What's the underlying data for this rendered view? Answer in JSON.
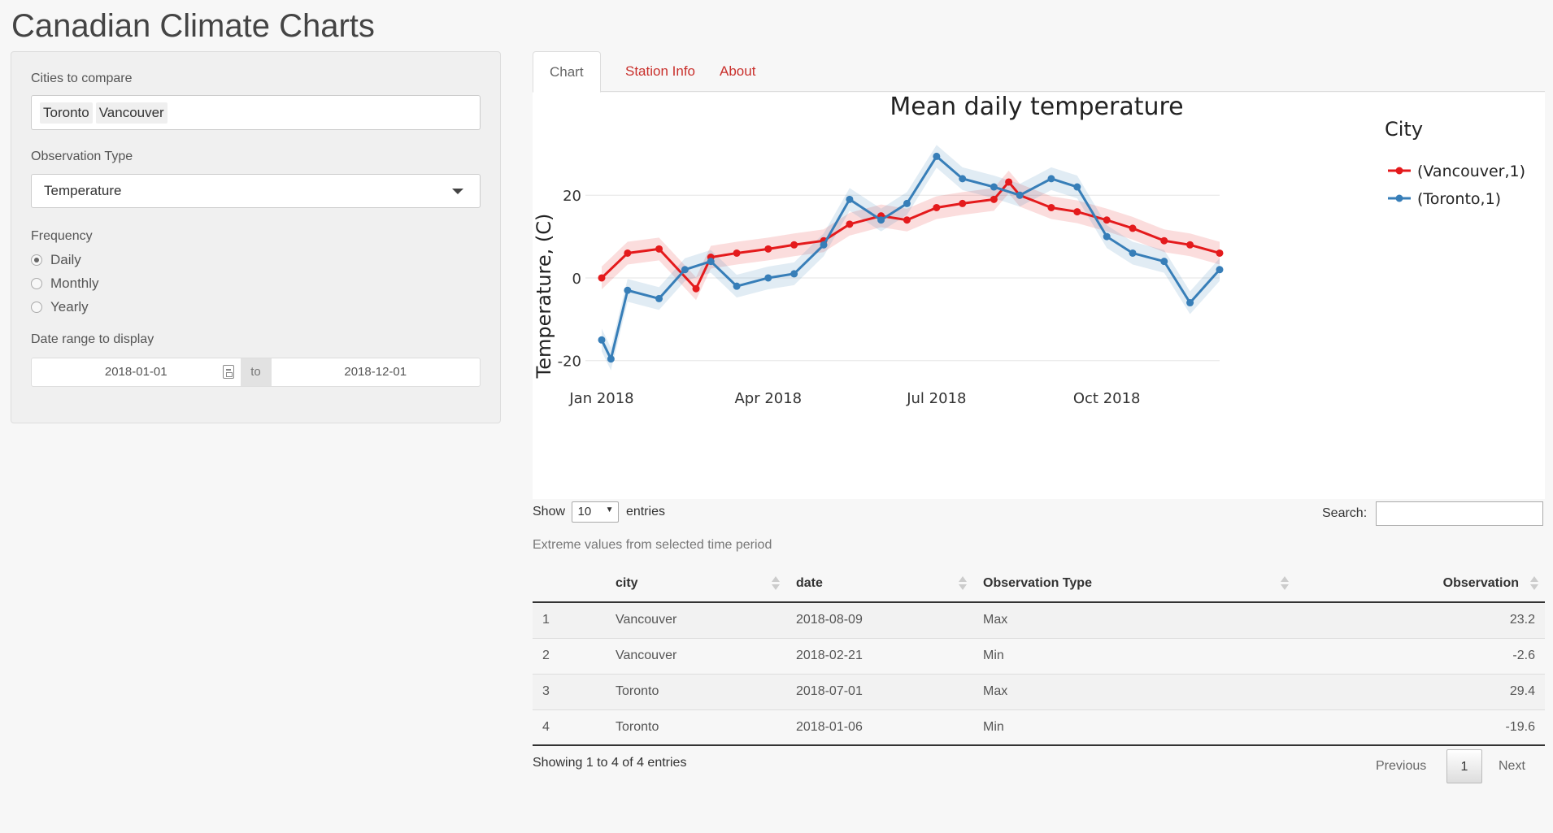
{
  "app": {
    "title": "Canadian Climate Charts"
  },
  "sidebar": {
    "cities_label": "Cities to compare",
    "cities": [
      "Toronto",
      "Vancouver"
    ],
    "obs_label": "Observation Type",
    "obs_value": "Temperature",
    "freq_label": "Frequency",
    "freq_options": [
      "Daily",
      "Monthly",
      "Yearly"
    ],
    "freq_selected": "Daily",
    "date_label": "Date range to display",
    "date_start": "2018-01-01",
    "date_sep": "to",
    "date_end": "2018-12-01"
  },
  "tabs": [
    "Chart",
    "Station Info",
    "About"
  ],
  "chart_data": {
    "type": "line",
    "title": "Mean daily temperature",
    "xlabel": "",
    "ylabel": "Temperature, (C)",
    "x_ticks": [
      "Jan 2018",
      "Apr 2018",
      "Jul 2018",
      "Oct 2018"
    ],
    "y_ticks": [
      "20",
      "0",
      "-20"
    ],
    "ylim": [
      -23,
      34
    ],
    "legend_title": "City",
    "legend_position": "top-right",
    "series": [
      {
        "name": "(Vancouver,1)",
        "color": "#e41a1c",
        "x": [
          "2018-01-01",
          "2018-01-15",
          "2018-02-01",
          "2018-02-21",
          "2018-03-01",
          "2018-03-15",
          "2018-04-01",
          "2018-04-15",
          "2018-05-01",
          "2018-05-15",
          "2018-06-01",
          "2018-06-15",
          "2018-07-01",
          "2018-07-15",
          "2018-08-01",
          "2018-08-09",
          "2018-08-15",
          "2018-09-01",
          "2018-09-15",
          "2018-10-01",
          "2018-10-15",
          "2018-11-01",
          "2018-11-15",
          "2018-12-01"
        ],
        "values": [
          0,
          6,
          7,
          -2.6,
          5,
          6,
          7,
          8,
          9,
          13,
          15,
          14,
          17,
          18,
          19,
          23.2,
          20,
          17,
          16,
          14,
          12,
          9,
          8,
          6
        ]
      },
      {
        "name": "(Toronto,1)",
        "color": "#377eb8",
        "x": [
          "2018-01-01",
          "2018-01-06",
          "2018-01-15",
          "2018-02-01",
          "2018-02-15",
          "2018-03-01",
          "2018-03-15",
          "2018-04-01",
          "2018-04-15",
          "2018-05-01",
          "2018-05-15",
          "2018-06-01",
          "2018-06-15",
          "2018-07-01",
          "2018-07-15",
          "2018-08-01",
          "2018-08-15",
          "2018-09-01",
          "2018-09-15",
          "2018-10-01",
          "2018-10-15",
          "2018-11-01",
          "2018-11-15",
          "2018-12-01"
        ],
        "values": [
          -15,
          -19.6,
          -3,
          -5,
          2,
          4,
          -2,
          0,
          1,
          8,
          19,
          14,
          18,
          29.4,
          24,
          22,
          20,
          24,
          22,
          10,
          6,
          4,
          -6,
          2
        ]
      }
    ]
  },
  "table": {
    "show_label": "Show",
    "length_value": "10",
    "entries_label": "entries",
    "search_label": "Search:",
    "caption": "Extreme values from selected time period",
    "columns": [
      "",
      "city",
      "date",
      "Observation Type",
      "Observation"
    ],
    "rows": [
      [
        "1",
        "Vancouver",
        "2018-08-09",
        "Max",
        "23.2"
      ],
      [
        "2",
        "Vancouver",
        "2018-02-21",
        "Min",
        "-2.6"
      ],
      [
        "3",
        "Toronto",
        "2018-07-01",
        "Max",
        "29.4"
      ],
      [
        "4",
        "Toronto",
        "2018-01-06",
        "Min",
        "-19.6"
      ]
    ],
    "info": "Showing 1 to 4 of 4 entries",
    "prev": "Previous",
    "page": "1",
    "next": "Next"
  }
}
